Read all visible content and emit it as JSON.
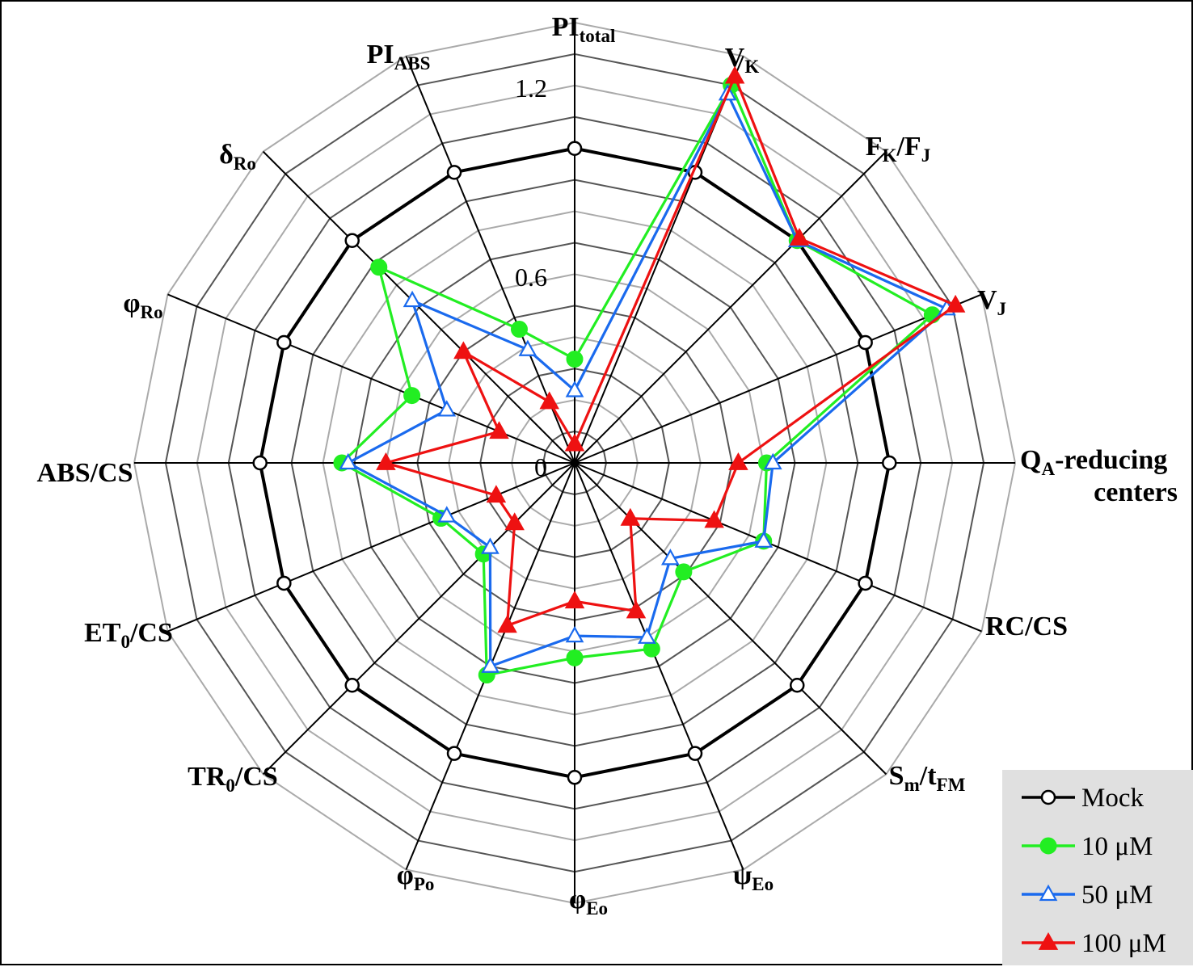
{
  "chart_data": {
    "type": "radar",
    "axes": [
      {
        "label": "PI",
        "sub": "total"
      },
      {
        "label": "V",
        "sub": "K"
      },
      {
        "label": "F",
        "sub": "K",
        "label2": "/F",
        "sub2": "J"
      },
      {
        "label": "V",
        "sub": "J"
      },
      {
        "label": "Q",
        "sub": "A",
        "label2": "-reducing",
        "line2": "centers"
      },
      {
        "label": "RC/CS"
      },
      {
        "label": "S",
        "sub": "m",
        "label2": "/t",
        "sub2": "FM"
      },
      {
        "label": "ψ",
        "sub": "Eo"
      },
      {
        "label": "φ",
        "sub": "Eo"
      },
      {
        "label": "φ",
        "sub": "Po"
      },
      {
        "label": "TR",
        "sub": "0",
        "label2": "/CS"
      },
      {
        "label": "ET",
        "sub": "0",
        "label2": "/CS"
      },
      {
        "label": "ABS/CS"
      },
      {
        "label": "φ",
        "sub": "Ro"
      },
      {
        "label": "δ",
        "sub": "Ro"
      },
      {
        "label": "PI",
        "sub": "ABS"
      }
    ],
    "rlim": [
      0,
      1.4
    ],
    "ring_step": 0.1,
    "tick_labels": [
      "1.2",
      "0.6",
      "0"
    ],
    "series": [
      {
        "name": "Mock",
        "color": "#000000",
        "marker": "open-circle",
        "values": [
          1.0,
          1.0,
          1.0,
          1.0,
          1.0,
          1.0,
          1.0,
          1.0,
          1.0,
          1.0,
          1.0,
          1.0,
          1.0,
          1.0,
          1.0,
          1.0
        ]
      },
      {
        "name": "10 μM",
        "color": "#22ee22",
        "marker": "filled-circle",
        "values": [
          0.33,
          1.3,
          1.0,
          1.23,
          0.61,
          0.65,
          0.49,
          0.64,
          0.62,
          0.73,
          0.41,
          0.46,
          0.74,
          0.56,
          0.88,
          0.46
        ]
      },
      {
        "name": "50 μM",
        "color": "#1a6aee",
        "marker": "open-triangle",
        "values": [
          0.23,
          1.27,
          1.0,
          1.28,
          0.63,
          0.65,
          0.43,
          0.6,
          0.55,
          0.7,
          0.38,
          0.44,
          0.72,
          0.44,
          0.73,
          0.39
        ]
      },
      {
        "name": "100 μM",
        "color": "#ee1111",
        "marker": "filled-triangle",
        "values": [
          0.06,
          1.33,
          1.01,
          1.31,
          0.52,
          0.48,
          0.25,
          0.51,
          0.44,
          0.56,
          0.27,
          0.27,
          0.6,
          0.26,
          0.5,
          0.21
        ]
      }
    ],
    "legend": {
      "position": "bottom-right",
      "entries": [
        "Mock",
        "10 μM",
        "50 μM",
        "100 μM"
      ]
    },
    "grid": true
  }
}
